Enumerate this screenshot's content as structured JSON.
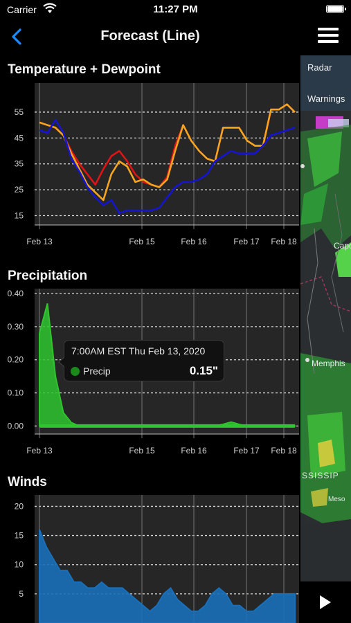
{
  "status": {
    "carrier": "Carrier",
    "time": "11:27 PM"
  },
  "nav": {
    "title": "Forecast (Line)"
  },
  "sections": {
    "temperature": "Temperature + Dewpoint",
    "precipitation": "Precipitation",
    "winds": "Winds"
  },
  "x_axis_labels": [
    "Feb 13",
    "Feb 15",
    "Feb 16",
    "Feb 17",
    "Feb 18"
  ],
  "tooltip": {
    "title": "7:00AM EST Thu Feb 13, 2020",
    "label": "Precip",
    "value": "0.15\""
  },
  "map": {
    "radar_label": "Radar",
    "warnings_label": "Warnings",
    "cities": [
      "Memphis",
      "Capo",
      "SSISSIP",
      "Meso"
    ]
  },
  "colors": {
    "temperature": "#e01414",
    "feels_like": "#f5a51e",
    "dewpoint": "#1515d0",
    "precip": "#2fc52f",
    "winds": "#1a6fb8",
    "accent": "#1a8cff"
  },
  "chart_data": [
    {
      "type": "line",
      "title": "Temperature + Dewpoint",
      "x_ticks": [
        "Feb 13",
        "Feb 15",
        "Feb 16",
        "Feb 17",
        "Feb 18"
      ],
      "y_ticks": [
        15,
        25,
        35,
        45,
        55
      ],
      "ylim": [
        13,
        59
      ],
      "x_points": 33,
      "series": [
        {
          "color": "#e01414",
          "values": [
            51,
            50,
            49,
            46,
            40,
            35,
            31,
            27,
            33,
            38,
            40,
            36,
            31,
            28,
            27,
            26,
            30,
            42,
            50,
            44,
            40,
            37,
            36,
            49,
            49,
            49,
            44,
            42,
            42,
            56,
            56,
            58,
            55
          ]
        },
        {
          "color": "#f5a51e",
          "values": [
            51,
            50,
            49,
            46,
            39,
            33,
            27,
            24,
            21,
            31,
            36,
            34,
            28,
            29,
            27,
            26,
            29,
            40,
            50,
            44,
            40,
            37,
            36,
            49,
            49,
            49,
            44,
            42,
            42,
            56,
            56,
            58,
            55
          ]
        },
        {
          "color": "#1515d0",
          "values": [
            48,
            47,
            52,
            47,
            37,
            32,
            26,
            22,
            19,
            21,
            16,
            17,
            17,
            17,
            17,
            18,
            22,
            26,
            28,
            28,
            29,
            31,
            36,
            38,
            40,
            39,
            39,
            39,
            42,
            46,
            47,
            48,
            49
          ]
        }
      ]
    },
    {
      "type": "area",
      "title": "Precipitation",
      "x_ticks": [
        "Feb 13",
        "Feb 15",
        "Feb 16",
        "Feb 17",
        "Feb 18"
      ],
      "y_ticks": [
        "0.00",
        "0.10",
        "0.20",
        "0.30",
        "0.40"
      ],
      "ylim": [
        -0.02,
        0.4
      ],
      "series": [
        {
          "name": "Precip",
          "color": "#2fc52f",
          "values": [
            0.28,
            0.37,
            0.15,
            0.04,
            0.01,
            0,
            0,
            0,
            0,
            0,
            0,
            0,
            0,
            0,
            0,
            0,
            0,
            0,
            0,
            0,
            0,
            0,
            0,
            0.005,
            0.012,
            0.005,
            0,
            0,
            0,
            0,
            0,
            0,
            0
          ]
        }
      ]
    },
    {
      "type": "area",
      "title": "Winds",
      "y_ticks": [
        5,
        10,
        15,
        20
      ],
      "ylim": [
        0,
        21
      ],
      "series": [
        {
          "color": "#1a6fb8",
          "values": [
            16,
            13,
            11,
            9,
            9,
            7,
            7,
            6,
            6,
            7,
            6,
            6,
            6,
            5,
            4,
            3,
            2,
            3,
            5,
            6,
            4,
            3,
            2,
            2,
            3,
            5,
            6,
            5,
            3,
            3,
            2,
            2,
            3,
            4,
            5,
            5,
            5,
            5
          ]
        }
      ]
    }
  ]
}
